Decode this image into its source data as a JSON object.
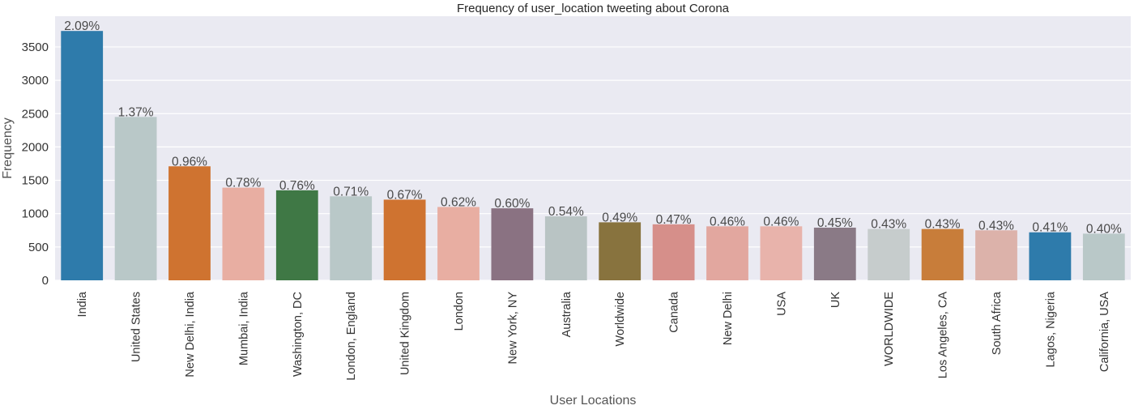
{
  "chart_data": {
    "type": "bar",
    "title": "Frequency of user_location tweeting about Corona",
    "xlabel": "User Locations",
    "ylabel": "Frequency",
    "ylim": [
      0,
      3800
    ],
    "yticks": [
      0,
      500,
      1000,
      1500,
      2000,
      2500,
      3000,
      3500
    ],
    "grid": true,
    "categories": [
      "India",
      "United States",
      "New Delhi, India",
      "Mumbai, India",
      "Washington, DC",
      "London, England",
      "United Kingdom",
      "London",
      "New York, NY",
      "Australia",
      "Worldwide",
      "Canada",
      "New Delhi",
      "USA",
      "UK",
      "WORLDWIDE",
      "Los Angeles, CA",
      "South Africa",
      "Lagos, Nigeria",
      "California, USA"
    ],
    "values": [
      3740,
      2450,
      1710,
      1390,
      1350,
      1260,
      1210,
      1100,
      1080,
      960,
      870,
      840,
      810,
      810,
      790,
      770,
      770,
      750,
      720,
      700
    ],
    "labels": [
      "2.09%",
      "1.37%",
      "0.96%",
      "0.78%",
      "0.76%",
      "0.71%",
      "0.67%",
      "0.62%",
      "0.60%",
      "0.54%",
      "0.49%",
      "0.47%",
      "0.46%",
      "0.46%",
      "0.45%",
      "0.43%",
      "0.43%",
      "0.43%",
      "0.41%",
      "0.40%"
    ],
    "colors": [
      "#2e7bab",
      "#b9c8c8",
      "#cf7330",
      "#e8aea2",
      "#3f7845",
      "#b9c8c8",
      "#cf7330",
      "#e8aea2",
      "#8a7282",
      "#b9c4c4",
      "#88733e",
      "#d68f8a",
      "#e2a79f",
      "#e8b3ab",
      "#8a7a86",
      "#c6cccc",
      "#c87d3a",
      "#dcb2aa",
      "#2e7bab",
      "#b9c8c8"
    ]
  }
}
